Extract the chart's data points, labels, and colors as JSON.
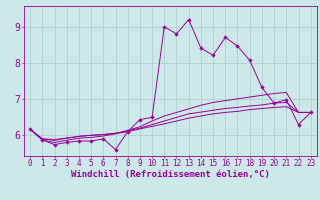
{
  "xlabel": "Windchill (Refroidissement éolien,°C)",
  "background_color": "#cce8e8",
  "grid_color": "#aacccc",
  "line_color": "#990099",
  "xlim": [
    -0.5,
    23.5
  ],
  "ylim": [
    5.4,
    9.6
  ],
  "yticks": [
    6,
    7,
    8,
    9
  ],
  "xticks": [
    0,
    1,
    2,
    3,
    4,
    5,
    6,
    7,
    8,
    9,
    10,
    11,
    12,
    13,
    14,
    15,
    16,
    17,
    18,
    19,
    20,
    21,
    22,
    23
  ],
  "series": [
    [
      6.15,
      5.85,
      5.72,
      5.78,
      5.82,
      5.82,
      5.88,
      5.58,
      6.08,
      6.42,
      6.48,
      9.02,
      8.82,
      9.22,
      8.42,
      8.22,
      8.72,
      8.48,
      8.08,
      7.32,
      6.88,
      6.98,
      6.28,
      6.62
    ],
    [
      6.15,
      5.85,
      5.78,
      5.84,
      5.9,
      5.92,
      5.96,
      6.02,
      6.12,
      6.22,
      6.38,
      6.52,
      6.62,
      6.72,
      6.82,
      6.9,
      6.95,
      7.0,
      7.05,
      7.1,
      7.15,
      7.18,
      6.62,
      6.62
    ],
    [
      6.15,
      5.88,
      5.84,
      5.9,
      5.95,
      5.98,
      6.0,
      6.04,
      6.1,
      6.18,
      6.28,
      6.38,
      6.48,
      6.58,
      6.63,
      6.68,
      6.73,
      6.76,
      6.8,
      6.83,
      6.88,
      6.9,
      6.62,
      6.62
    ],
    [
      6.15,
      5.88,
      5.86,
      5.9,
      5.95,
      5.98,
      6.0,
      6.03,
      6.08,
      6.16,
      6.23,
      6.3,
      6.38,
      6.46,
      6.52,
      6.58,
      6.62,
      6.65,
      6.7,
      6.73,
      6.76,
      6.78,
      6.62,
      6.62
    ]
  ],
  "tick_fontsize": 5.5,
  "axis_label_fontsize": 6.5
}
